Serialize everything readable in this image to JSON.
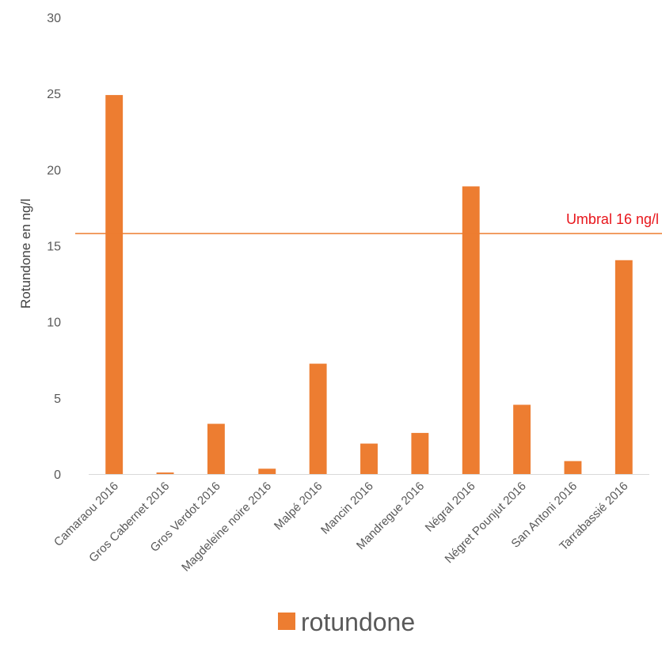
{
  "chart_data": {
    "type": "bar",
    "categories": [
      "Camaraou 2016",
      "Gros Cabernet 2016",
      "Gros Verdot 2016",
      "Magdeleine noire 2016",
      "Malpé 2016",
      "Mancin 2016",
      "Mandregue 2016",
      "Négral 2016",
      "Négret Pounjut 2016",
      "San Antoni 2016",
      "Tarrabassié 2016"
    ],
    "series": [
      {
        "name": "rotundone",
        "values": [
          24.9,
          0.1,
          3.3,
          0.35,
          7.25,
          2.0,
          2.7,
          18.9,
          4.55,
          0.85,
          14.05
        ],
        "color": "#ed7d31"
      }
    ],
    "ylabel": "Rotundone en ng/l",
    "ylim": [
      0,
      30
    ],
    "yticks": [
      0,
      5,
      10,
      15,
      20,
      25,
      30
    ],
    "grid": false,
    "legend": "bottom",
    "threshold": {
      "value": 15.8,
      "label": "Umbral 16 ng/l",
      "line_color": "#ed7d31",
      "label_color": "#e8151b"
    },
    "axis_color": "#d9d9d9",
    "text_color": "#595959"
  }
}
